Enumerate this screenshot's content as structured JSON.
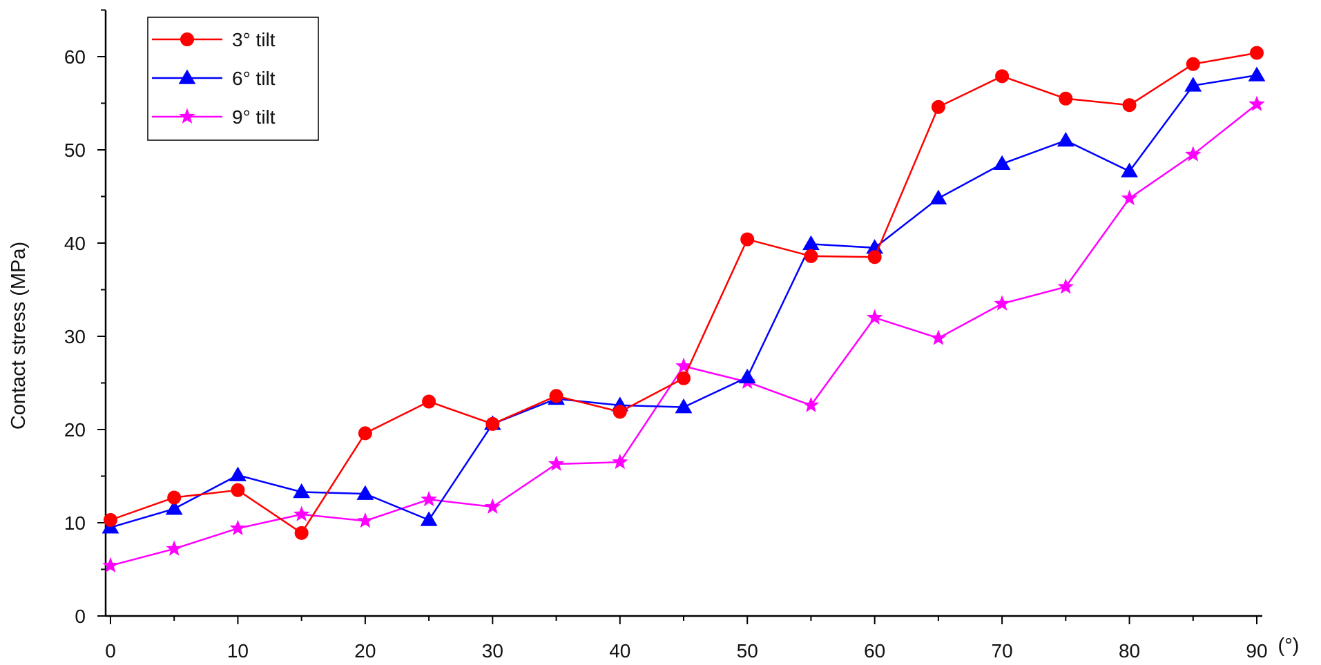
{
  "chart_data": {
    "type": "line",
    "title": "",
    "xlabel": "",
    "x_unit": "(°)",
    "ylabel": "Contact stress (MPa)",
    "xlim": [
      0,
      90
    ],
    "ylim": [
      0,
      65
    ],
    "x_ticks": [
      0,
      10,
      20,
      30,
      40,
      50,
      60,
      70,
      80,
      90
    ],
    "y_ticks": [
      0,
      10,
      20,
      30,
      40,
      50,
      60
    ],
    "grid": false,
    "legend_position": "top-left",
    "x": [
      0,
      5,
      10,
      15,
      20,
      25,
      30,
      35,
      40,
      45,
      50,
      55,
      60,
      65,
      70,
      75,
      80,
      85,
      90
    ],
    "series": [
      {
        "name": "3° tilt",
        "color": "#ff0000",
        "marker": "circle",
        "values": [
          10.3,
          12.7,
          13.5,
          8.9,
          19.6,
          23.0,
          20.6,
          23.6,
          21.9,
          25.5,
          40.4,
          38.6,
          38.5,
          54.6,
          57.9,
          55.5,
          54.8,
          59.2,
          60.4
        ]
      },
      {
        "name": "6° tilt",
        "color": "#0000ff",
        "marker": "triangle",
        "values": [
          9.5,
          11.5,
          15.1,
          13.3,
          13.1,
          10.3,
          20.6,
          23.3,
          22.6,
          22.4,
          25.6,
          39.9,
          39.5,
          44.8,
          48.5,
          51.0,
          47.7,
          56.9,
          58.0
        ]
      },
      {
        "name": "9° tilt",
        "color": "#ff00ff",
        "marker": "star",
        "values": [
          5.4,
          7.2,
          9.4,
          10.9,
          10.2,
          12.5,
          11.7,
          16.3,
          16.5,
          26.8,
          25.1,
          22.6,
          32.0,
          29.8,
          33.5,
          35.3,
          44.8,
          49.5,
          54.9
        ]
      }
    ]
  }
}
